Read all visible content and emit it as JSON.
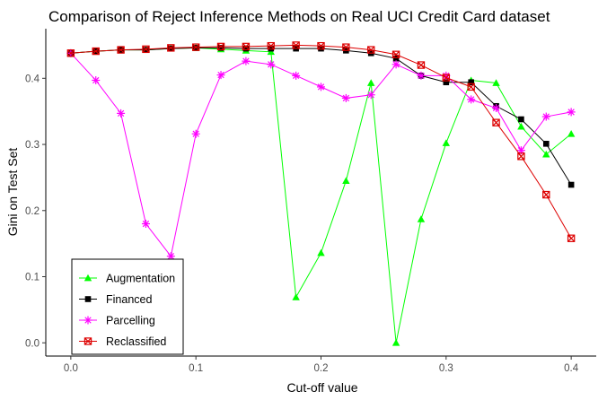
{
  "chart_data": {
    "type": "line",
    "title": "Comparison of Reject Inference Methods on Real UCI Credit Card dataset",
    "xlabel": "Cut-off value",
    "ylabel": "Gini on Test Set",
    "xlim": [
      -0.02,
      0.42
    ],
    "ylim": [
      -0.02,
      0.475
    ],
    "x_ticks": [
      0.0,
      0.1,
      0.2,
      0.3,
      0.4
    ],
    "x_tick_labels": [
      "0.0",
      "0.1",
      "0.2",
      "0.3",
      "0.4"
    ],
    "y_ticks": [
      0.0,
      0.1,
      0.2,
      0.3,
      0.4
    ],
    "y_tick_labels": [
      "0.0",
      "0.1",
      "0.2",
      "0.3",
      "0.4"
    ],
    "grid": false,
    "legend_position": "bottom-left",
    "x": [
      0.0,
      0.02,
      0.04,
      0.06,
      0.08,
      0.1,
      0.12,
      0.14,
      0.16,
      0.18,
      0.2,
      0.22,
      0.24,
      0.26,
      0.28,
      0.3,
      0.32,
      0.34,
      0.36,
      0.38,
      0.4
    ],
    "series": [
      {
        "name": "Augmentation",
        "color": "#00ff00",
        "marker": "triangle",
        "values": [
          0.438,
          0.441,
          0.443,
          0.443,
          0.445,
          0.446,
          0.444,
          0.442,
          0.44,
          0.069,
          0.136,
          0.245,
          0.393,
          0.0,
          0.187,
          0.302,
          0.397,
          0.393,
          0.327,
          0.285,
          0.316
        ]
      },
      {
        "name": "Financed",
        "color": "#000000",
        "marker": "square",
        "values": [
          0.438,
          0.441,
          0.443,
          0.443,
          0.445,
          0.446,
          0.446,
          0.445,
          0.445,
          0.445,
          0.445,
          0.442,
          0.438,
          0.43,
          0.404,
          0.394,
          0.394,
          0.358,
          0.338,
          0.301,
          0.239
        ]
      },
      {
        "name": "Parcelling",
        "color": "#ff00ff",
        "marker": "asterisk",
        "values": [
          0.438,
          0.397,
          0.347,
          0.18,
          0.131,
          0.316,
          0.405,
          0.426,
          0.421,
          0.404,
          0.387,
          0.37,
          0.375,
          0.421,
          0.404,
          0.404,
          0.368,
          0.355,
          0.291,
          0.342,
          0.349
        ]
      },
      {
        "name": "Reclassified",
        "color": "#dd0000",
        "marker": "boxed-x",
        "values": [
          0.438,
          0.441,
          0.443,
          0.444,
          0.446,
          0.447,
          0.448,
          0.448,
          0.449,
          0.45,
          0.449,
          0.447,
          0.443,
          0.436,
          0.42,
          0.401,
          0.387,
          0.333,
          0.282,
          0.224,
          0.158
        ]
      }
    ]
  }
}
